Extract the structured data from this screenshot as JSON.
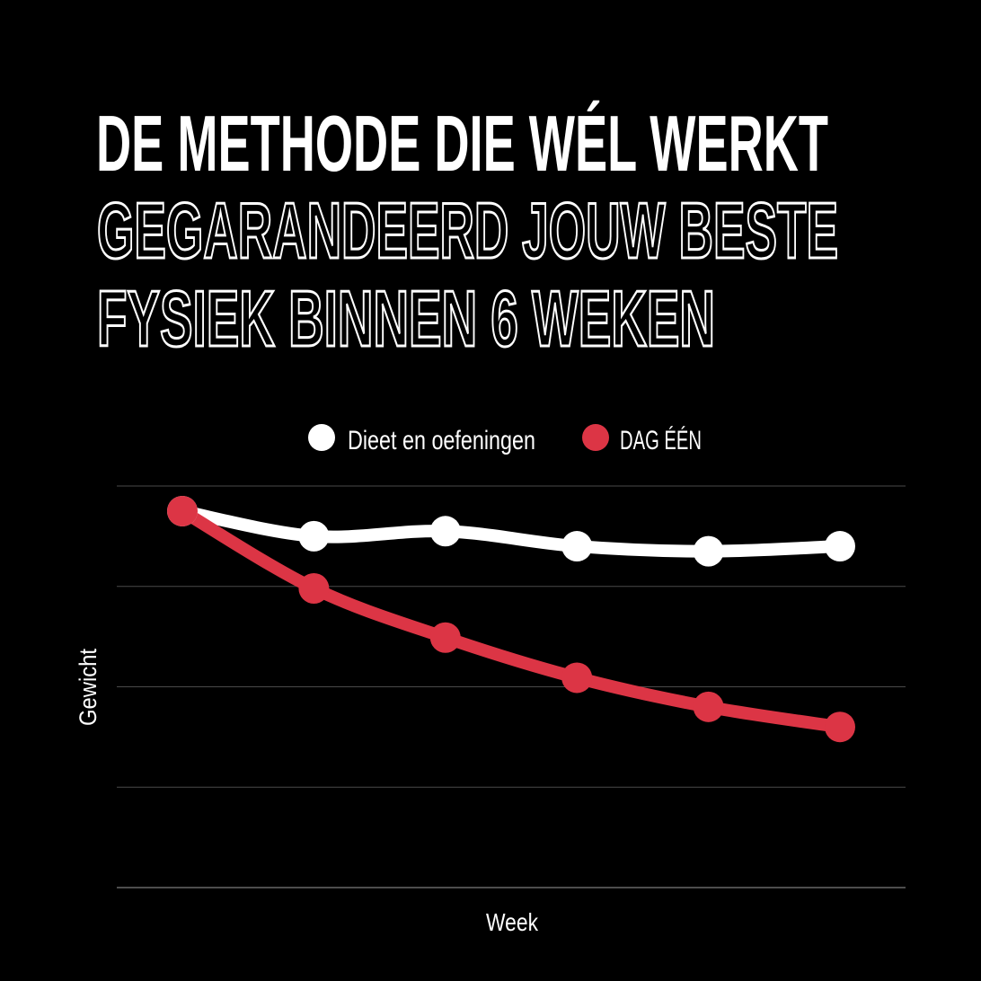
{
  "header": {
    "title": "DE METHODE DIE WÉL WERKT",
    "subtitle_line1": "GEGARANDEERD JOUW BESTE",
    "subtitle_line2": "FYSIEK BINNEN 6 WEKEN"
  },
  "chart_data": {
    "type": "line",
    "title": "DE METHODE DIE WÉL WERKT",
    "xlabel": "Week",
    "ylabel": "Gewicht",
    "x": [
      1,
      2,
      3,
      4,
      5,
      6
    ],
    "ylim": [
      0,
      4
    ],
    "grid": true,
    "tick_labels_shown": false,
    "legend_position": "top-center",
    "series": [
      {
        "name": "Dieet en oefeningen",
        "color": "#ffffff",
        "values": [
          3.75,
          3.5,
          3.55,
          3.4,
          3.35,
          3.4
        ]
      },
      {
        "name": "DAG ÉÉN",
        "color": "#dc3545",
        "values": [
          3.75,
          2.98,
          2.49,
          2.09,
          1.8,
          1.6
        ]
      }
    ]
  }
}
